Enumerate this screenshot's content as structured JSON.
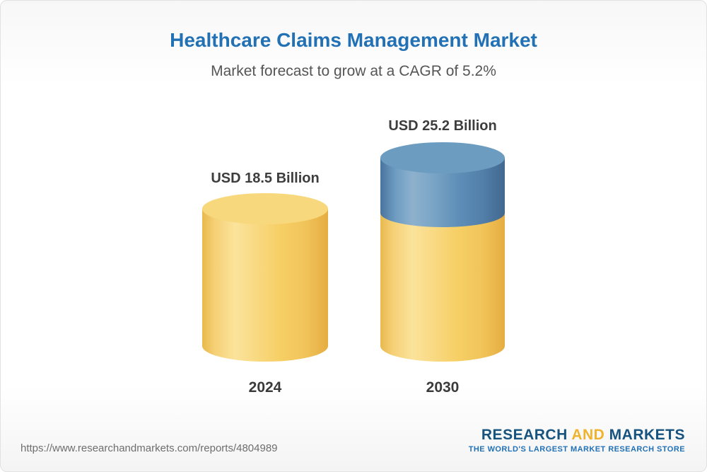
{
  "chart_data": {
    "type": "bar",
    "subtype": "3d-cylinder",
    "title": "Healthcare Claims Management Market",
    "subtitle": "Market forecast to grow at a CAGR of 5.2%",
    "cagr_percent": 5.2,
    "unit": "USD Billion",
    "categories": [
      "2024",
      "2030"
    ],
    "values": [
      18.5,
      25.2
    ],
    "legend": "none",
    "axes": "none",
    "bars": [
      {
        "category": "2024",
        "value": 18.5,
        "label": "USD 18.5 Billion",
        "segments": [
          {
            "name": "base",
            "value": 18.5,
            "color": "#f6cf65"
          }
        ]
      },
      {
        "category": "2030",
        "value": 25.2,
        "label": "USD 25.2 Billion",
        "segments": [
          {
            "name": "base",
            "value": 18.5,
            "color": "#f6cf65"
          },
          {
            "name": "growth",
            "value": 6.7,
            "color": "#5b8db8"
          }
        ]
      }
    ]
  },
  "footer": {
    "url": "https://www.researchandmarkets.com/reports/4804989",
    "logo": {
      "research": "RESEARCH",
      "and": "AND",
      "markets": "MARKETS",
      "tagline": "THE WORLD'S LARGEST MARKET RESEARCH STORE"
    }
  },
  "colors": {
    "title_blue": "#2271b5",
    "subtitle_gray": "#555555",
    "bar_yellow": "#f6cf65",
    "bar_blue": "#5b8db8",
    "logo_blue": "#16537e",
    "logo_yellow": "#f0b32e"
  }
}
